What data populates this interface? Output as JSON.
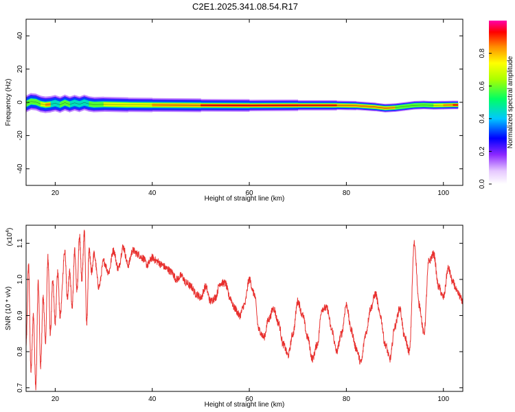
{
  "title": "C2E1.2025.341.08.54.R17",
  "chart_data": [
    {
      "type": "heatmap",
      "xlabel": "Height of straight line (km)",
      "ylabel": "Frequency (Hz)",
      "xlim": [
        14,
        104
      ],
      "ylim": [
        -50,
        50
      ],
      "xticks": [
        20,
        40,
        60,
        80,
        100
      ],
      "yticks": [
        40,
        20,
        0,
        -20,
        -40
      ],
      "ridge": {
        "x": [
          14,
          15,
          16,
          17,
          18,
          19,
          20,
          21,
          22,
          23,
          24,
          25,
          26,
          27,
          28,
          30,
          35,
          40,
          50,
          60,
          70,
          78,
          82,
          86,
          88,
          90,
          92,
          94,
          96,
          98,
          100,
          102,
          103
        ],
        "freq": [
          -1,
          0.5,
          0.2,
          -1,
          -1.5,
          -1.2,
          -0.5,
          -1.5,
          -0.2,
          -1.3,
          -0.3,
          -1.2,
          -0.1,
          -1.0,
          -1.4,
          -1.2,
          -1.5,
          -1.6,
          -1.8,
          -1.9,
          -1.8,
          -1.8,
          -2.0,
          -2.8,
          -3.5,
          -3.2,
          -2.5,
          -1.8,
          -1.6,
          -1.8,
          -1.7,
          -1.6,
          -1.6
        ],
        "amplitude": [
          0.75,
          0.6,
          0.55,
          0.7,
          0.9,
          0.8,
          0.5,
          0.6,
          0.6,
          0.55,
          0.5,
          0.55,
          0.5,
          0.55,
          0.6,
          0.65,
          0.75,
          0.8,
          0.88,
          0.92,
          0.93,
          0.9,
          0.85,
          0.8,
          0.9,
          0.85,
          0.6,
          0.55,
          0.6,
          0.75,
          0.85,
          0.95,
          0.9
        ]
      },
      "colorbar": {
        "label": "Normalized spectral amplitude",
        "range": [
          0,
          1
        ],
        "ticks": [
          "0.0",
          "0.2",
          "0.4",
          "0.6",
          "0.8"
        ]
      }
    },
    {
      "type": "line",
      "xlabel": "Height of straight line (km)",
      "ylabel": "SNR (10 * v/v)",
      "yscale_label": "(x10",
      "yscale_exp": "4",
      "xlim": [
        14,
        104
      ],
      "ylim": [
        0.69,
        1.15
      ],
      "xticks": [
        20,
        40,
        60,
        80,
        100
      ],
      "yticks": [
        "0.7",
        "0.8",
        "0.9",
        "1.0",
        "1.1"
      ],
      "series": [
        {
          "name": "SNR",
          "color": "#e8302e",
          "x": [
            14,
            14.5,
            15,
            15.5,
            16,
            16.5,
            17,
            17.5,
            18,
            18.5,
            19,
            19.5,
            20,
            20.5,
            21,
            22,
            22.5,
            23,
            23.5,
            24,
            24.5,
            25,
            25.5,
            26,
            26.5,
            27,
            27.5,
            28,
            29,
            30,
            31,
            32,
            33,
            34,
            35,
            36,
            37,
            38,
            39,
            40,
            41,
            42,
            43,
            44,
            45,
            46,
            47,
            48,
            49,
            50,
            51,
            52,
            53,
            54,
            55,
            56,
            57,
            58,
            59,
            60,
            61,
            62,
            63,
            64,
            65,
            66,
            67,
            68,
            69,
            70,
            71,
            72,
            73,
            74,
            75,
            76,
            77,
            78,
            79,
            80,
            81,
            82,
            83,
            84,
            85,
            86,
            87,
            88,
            89,
            90,
            91,
            92,
            93,
            94,
            95,
            96,
            97,
            98,
            99,
            100,
            101,
            102,
            103,
            104
          ],
          "y": [
            0.82,
            1.04,
            0.75,
            0.9,
            0.7,
            0.99,
            0.76,
            0.95,
            0.83,
            1.06,
            0.85,
            1.0,
            0.88,
            1.02,
            0.9,
            1.08,
            0.95,
            1.02,
            0.92,
            1.08,
            0.97,
            1.12,
            1.0,
            1.13,
            0.88,
            1.08,
            1.02,
            1.07,
            0.98,
            1.05,
            1.02,
            1.08,
            1.03,
            1.09,
            1.04,
            1.08,
            1.07,
            1.06,
            1.04,
            1.06,
            1.05,
            1.04,
            1.03,
            1.02,
            1.0,
            1.01,
            0.99,
            0.98,
            0.96,
            0.95,
            0.98,
            0.94,
            0.95,
            0.99,
            0.99,
            0.95,
            0.92,
            0.9,
            0.93,
            1.0,
            0.96,
            0.86,
            0.84,
            0.89,
            0.92,
            0.88,
            0.82,
            0.79,
            0.85,
            0.94,
            0.9,
            0.84,
            0.78,
            0.82,
            0.92,
            0.92,
            0.86,
            0.8,
            0.85,
            0.93,
            0.86,
            0.81,
            0.77,
            0.85,
            0.92,
            0.96,
            0.9,
            0.82,
            0.78,
            0.87,
            0.92,
            0.84,
            0.8,
            1.1,
            0.93,
            0.85,
            1.05,
            1.07,
            0.98,
            0.95,
            1.03,
            0.99,
            0.96,
            0.94
          ]
        }
      ]
    }
  ]
}
